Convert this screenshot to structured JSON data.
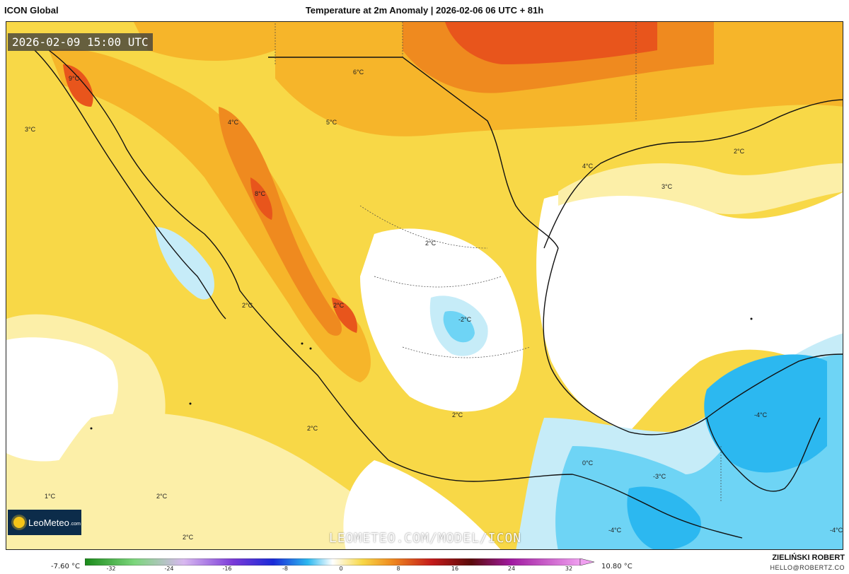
{
  "header": {
    "model": "ICON Global",
    "title": "Temperature at 2m Anomaly | 2026-02-06 06 UTC + 81h"
  },
  "map": {
    "valid_time": "2026-02-09 15:00 UTC",
    "watermark": "LEOMETEO.COM/MODEL/ICON",
    "logo_text": "LeoMeteo",
    "logo_suffix": ".com",
    "labels": [
      "9°C",
      "3°C",
      "4°C",
      "5°C",
      "6°C",
      "8°C",
      "4°C",
      "3°C",
      "2°C",
      "2°C",
      "2°C",
      "-2°C",
      "2°C",
      "2°C",
      "1°C",
      "2°C",
      "2°C",
      "0°C",
      "-3°C",
      "-4°C",
      "-4°C",
      "-4°C",
      "2°C"
    ],
    "colors": {
      "warm_light": "#fcefa8",
      "warm": "#f8d847",
      "warm_mid": "#f6b52a",
      "warm_deep": "#ef8a1f",
      "hot": "#e8551c",
      "cool_light": "#c6ecf8",
      "cool": "#6ed4f5",
      "cool_deep": "#2cb8f0",
      "coast": "#111111"
    }
  },
  "legend": {
    "min_label": "-7.60 °C",
    "max_label": "10.80 °C",
    "ticks": [
      "-32",
      "-24",
      "-16",
      "-8",
      "0",
      "8",
      "16",
      "24",
      "32"
    ]
  },
  "footer": {
    "author": "ZIELIŃSKI ROBERT",
    "email": "HELLO@ROBERTZ.CO"
  }
}
